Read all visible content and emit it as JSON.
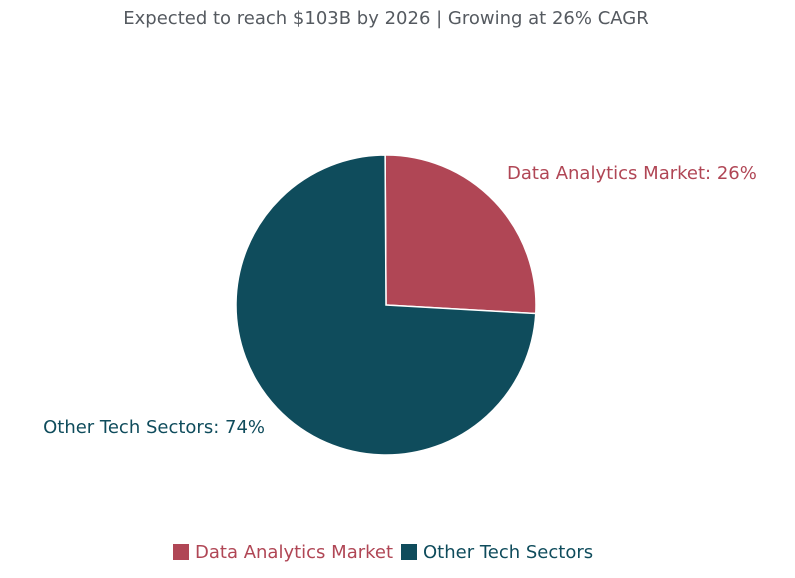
{
  "chart_data": {
    "type": "pie",
    "subtitle": "Expected to reach $103B by 2026 | Growing at 26% CAGR",
    "slices": [
      {
        "name": "Data Analytics Market",
        "value": 26,
        "label": "Data Analytics Market: 26%",
        "color": "#b04655"
      },
      {
        "name": "Other Tech Sectors",
        "value": 74,
        "label": "Other Tech Sectors: 74%",
        "color": "#0f4c5c"
      }
    ],
    "legend_placement": "bottom-center",
    "legend": [
      "Data Analytics Market",
      "Other Tech Sectors"
    ]
  }
}
